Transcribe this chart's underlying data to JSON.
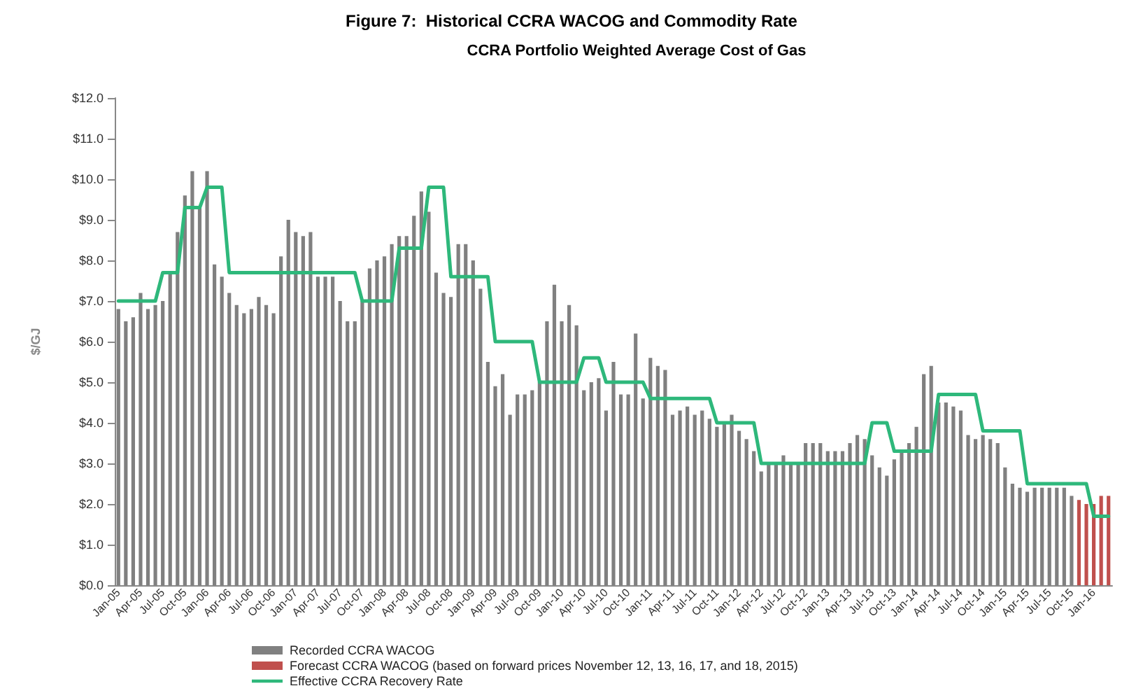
{
  "chart_data": {
    "type": "bar",
    "title": "Figure 7:  Historical CCRA WACOG and Commodity Rate",
    "subtitle": "CCRA Portfolio Weighted Average Cost of Gas",
    "ylabel": "$/GJ",
    "categories": [
      "Jan-05",
      null,
      null,
      "Apr-05",
      null,
      null,
      "Jul-05",
      null,
      null,
      "Oct-05",
      null,
      null,
      "Jan-06",
      null,
      null,
      "Apr-06",
      null,
      null,
      "Jul-06",
      null,
      null,
      "Oct-06",
      null,
      null,
      "Jan-07",
      null,
      null,
      "Apr-07",
      null,
      null,
      "Jul-07",
      null,
      null,
      "Oct-07",
      null,
      null,
      "Jan-08",
      null,
      null,
      "Apr-08",
      null,
      null,
      "Jul-08",
      null,
      null,
      "Oct-08",
      null,
      null,
      "Jan-09",
      null,
      null,
      "Apr-09",
      null,
      null,
      "Jul-09",
      null,
      null,
      "Oct-09",
      null,
      null,
      "Jan-10",
      null,
      null,
      "Apr-10",
      null,
      null,
      "Jul-10",
      null,
      null,
      "Oct-10",
      null,
      null,
      "Jan-11",
      null,
      null,
      "Apr-11",
      null,
      null,
      "Jul-11",
      null,
      null,
      "Oct-11",
      null,
      null,
      "Jan-12",
      null,
      null,
      "Apr-12",
      null,
      null,
      "Jul-12",
      null,
      null,
      "Oct-12",
      null,
      null,
      "Jan-13",
      null,
      null,
      "Apr-13",
      null,
      null,
      "Jul-13",
      null,
      null,
      "Oct-13",
      null,
      null,
      "Jan-14",
      null,
      null,
      "Apr-14",
      null,
      null,
      "Jul-14",
      null,
      null,
      "Oct-14",
      null,
      null,
      "Jan-15",
      null,
      null,
      "Apr-15",
      null,
      null,
      "Jul-15",
      null,
      null,
      "Oct-15",
      null,
      null,
      "Jan-16",
      null,
      null
    ],
    "series": [
      {
        "name": "Recorded CCRA WACOG",
        "color": "#808080",
        "values": [
          6.8,
          6.5,
          6.6,
          7.2,
          6.8,
          6.9,
          7.0,
          7.7,
          8.7,
          9.6,
          10.2,
          9.3,
          10.2,
          7.9,
          7.6,
          7.2,
          6.9,
          6.7,
          6.8,
          7.1,
          6.9,
          6.7,
          8.1,
          9.0,
          8.7,
          8.6,
          8.7,
          7.6,
          7.6,
          7.6,
          7.0,
          6.5,
          6.5,
          7.0,
          7.8,
          8.0,
          8.1,
          8.4,
          8.6,
          8.6,
          9.1,
          9.7,
          9.2,
          7.7,
          7.2,
          7.1,
          8.4,
          8.4,
          8.0,
          7.3,
          5.5,
          4.9,
          5.2,
          4.2,
          4.7,
          4.7,
          4.8,
          5.0,
          6.5,
          7.4,
          6.5,
          6.9,
          6.4,
          4.8,
          5.0,
          5.1,
          4.3,
          5.5,
          4.7,
          4.7,
          6.2,
          4.6,
          5.6,
          5.4,
          5.3,
          4.2,
          4.3,
          4.4,
          4.2,
          4.3,
          4.1,
          3.9,
          4.0,
          4.2,
          3.8,
          3.6,
          3.3,
          2.8,
          3.0,
          3.0,
          3.2,
          3.0,
          3.0,
          3.5,
          3.5,
          3.5,
          3.3,
          3.3,
          3.3,
          3.5,
          3.7,
          3.6,
          3.2,
          2.9,
          2.7,
          3.1,
          3.3,
          3.5,
          3.9,
          5.2,
          5.4,
          4.5,
          4.5,
          4.4,
          4.3,
          3.7,
          3.6,
          3.7,
          3.6,
          3.5,
          2.9,
          2.5,
          2.4,
          2.3,
          2.4,
          2.4,
          2.4,
          2.4,
          2.4,
          2.2,
          null,
          null,
          null,
          null,
          null
        ]
      },
      {
        "name": "Forecast CCRA WACOG (based on forward prices November 12, 13, 16, 17, and 18, 2015)",
        "color": "#c0504d",
        "values": [
          null,
          null,
          null,
          null,
          null,
          null,
          null,
          null,
          null,
          null,
          null,
          null,
          null,
          null,
          null,
          null,
          null,
          null,
          null,
          null,
          null,
          null,
          null,
          null,
          null,
          null,
          null,
          null,
          null,
          null,
          null,
          null,
          null,
          null,
          null,
          null,
          null,
          null,
          null,
          null,
          null,
          null,
          null,
          null,
          null,
          null,
          null,
          null,
          null,
          null,
          null,
          null,
          null,
          null,
          null,
          null,
          null,
          null,
          null,
          null,
          null,
          null,
          null,
          null,
          null,
          null,
          null,
          null,
          null,
          null,
          null,
          null,
          null,
          null,
          null,
          null,
          null,
          null,
          null,
          null,
          null,
          null,
          null,
          null,
          null,
          null,
          null,
          null,
          null,
          null,
          null,
          null,
          null,
          null,
          null,
          null,
          null,
          null,
          null,
          null,
          null,
          null,
          null,
          null,
          null,
          null,
          null,
          null,
          null,
          null,
          null,
          null,
          null,
          null,
          null,
          null,
          null,
          null,
          null,
          null,
          null,
          null,
          null,
          null,
          null,
          null,
          null,
          null,
          null,
          null,
          2.1,
          2.0,
          2.0,
          2.2,
          2.2
        ]
      },
      {
        "name": "Effective CCRA Recovery Rate",
        "type": "line",
        "color": "#2eb87b",
        "values": [
          7.0,
          7.0,
          7.0,
          7.0,
          7.0,
          7.0,
          7.7,
          7.7,
          7.7,
          9.3,
          9.3,
          9.3,
          9.8,
          9.8,
          9.8,
          7.7,
          7.7,
          7.7,
          7.7,
          7.7,
          7.7,
          7.7,
          7.7,
          7.7,
          7.7,
          7.7,
          7.7,
          7.7,
          7.7,
          7.7,
          7.7,
          7.7,
          7.7,
          7.0,
          7.0,
          7.0,
          7.0,
          7.0,
          8.3,
          8.3,
          8.3,
          8.3,
          9.8,
          9.8,
          9.8,
          7.6,
          7.6,
          7.6,
          7.6,
          7.6,
          7.6,
          6.0,
          6.0,
          6.0,
          6.0,
          6.0,
          6.0,
          5.0,
          5.0,
          5.0,
          5.0,
          5.0,
          5.0,
          5.6,
          5.6,
          5.6,
          5.0,
          5.0,
          5.0,
          5.0,
          5.0,
          5.0,
          4.6,
          4.6,
          4.6,
          4.6,
          4.6,
          4.6,
          4.6,
          4.6,
          4.6,
          4.0,
          4.0,
          4.0,
          4.0,
          4.0,
          4.0,
          3.0,
          3.0,
          3.0,
          3.0,
          3.0,
          3.0,
          3.0,
          3.0,
          3.0,
          3.0,
          3.0,
          3.0,
          3.0,
          3.0,
          3.0,
          4.0,
          4.0,
          4.0,
          3.3,
          3.3,
          3.3,
          3.3,
          3.3,
          3.3,
          4.7,
          4.7,
          4.7,
          4.7,
          4.7,
          4.7,
          3.8,
          3.8,
          3.8,
          3.8,
          3.8,
          3.8,
          2.5,
          2.5,
          2.5,
          2.5,
          2.5,
          2.5,
          2.5,
          2.5,
          2.5,
          1.7,
          1.7,
          1.7
        ]
      }
    ],
    "ylim": [
      0,
      12
    ],
    "yticks": [
      {
        "value": 0,
        "label": "$0.0"
      },
      {
        "value": 1,
        "label": "$1.0"
      },
      {
        "value": 2,
        "label": "$2.0"
      },
      {
        "value": 3,
        "label": "$3.0"
      },
      {
        "value": 4,
        "label": "$4.0"
      },
      {
        "value": 5,
        "label": "$5.0"
      },
      {
        "value": 6,
        "label": "$6.0"
      },
      {
        "value": 7,
        "label": "$7.0"
      },
      {
        "value": 8,
        "label": "$8.0"
      },
      {
        "value": 9,
        "label": "$9.0"
      },
      {
        "value": 10,
        "label": "$10.0"
      },
      {
        "value": 11,
        "label": "$11.0"
      },
      {
        "value": 12,
        "label": "$12.0"
      }
    ],
    "grid": false,
    "legend": "bottom",
    "marker": "none",
    "line_style": "solid"
  }
}
